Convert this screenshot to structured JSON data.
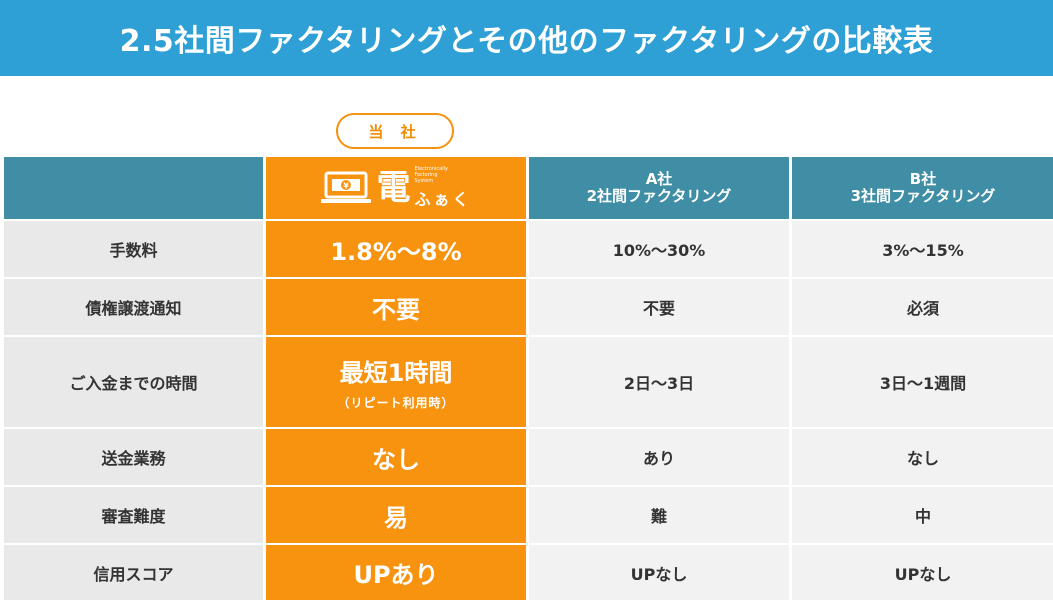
{
  "title": "2.5社間ファクタリングとその他のファクタリングの比較表",
  "ours_badge": "当 社",
  "logo": {
    "kanji": "電",
    "kana": "ふぁく",
    "english": [
      "Electronically",
      "Factoring",
      "System"
    ],
    "icon": "laptop-yen-icon"
  },
  "columns": {
    "a": [
      "A社",
      "2社間ファクタリング"
    ],
    "b": [
      "B社",
      "3社間ファクタリング"
    ]
  },
  "rows": [
    {
      "label": "手数料",
      "ours": "1.8%〜8%",
      "a": "10%〜30%",
      "b": "3%〜15%"
    },
    {
      "label": "債権譲渡通知",
      "ours": "不要",
      "a": "不要",
      "b": "必須"
    },
    {
      "label": "ご入金までの時間",
      "ours": "最短1時間",
      "ours_sub": "（リピート利用時）",
      "a": "2日〜3日",
      "b": "3日〜1週間"
    },
    {
      "label": "送金業務",
      "ours": "なし",
      "a": "あり",
      "b": "なし"
    },
    {
      "label": "審査難度",
      "ours": "易",
      "a": "難",
      "b": "中"
    },
    {
      "label": "信用スコア",
      "ours": "UPあり",
      "a": "UPなし",
      "b": "UPなし"
    }
  ],
  "colors": {
    "banner": "#2ea0d5",
    "header": "#3f8ea6",
    "ours": "#f7930f",
    "label_bg": "#e9e9e9",
    "cell_bg": "#f2f2f2"
  }
}
